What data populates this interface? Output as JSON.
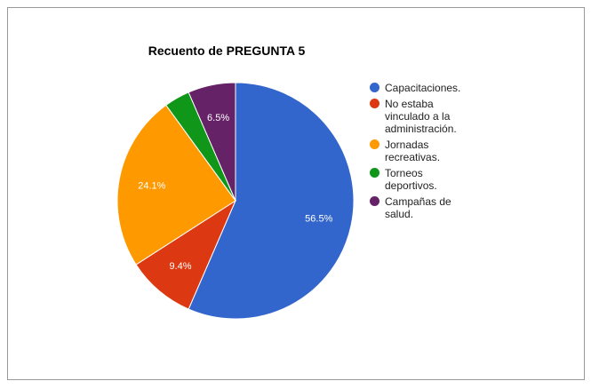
{
  "chart_data": {
    "type": "pie",
    "title": "Recuento de PREGUNTA 5",
    "categories": [
      "Capacitaciones.",
      "No estaba vinculado a la administración.",
      "Jornadas recreativas.",
      "Torneos deportivos.",
      "Campañas de salud."
    ],
    "values": [
      56.5,
      9.4,
      24.1,
      3.5,
      6.5
    ],
    "value_labels": [
      "56.5%",
      "9.4%",
      "24.1%",
      null,
      "6.5%"
    ],
    "colors": [
      "#3366cc",
      "#dc3912",
      "#ff9900",
      "#109618",
      "#662266"
    ],
    "legend": "right"
  }
}
